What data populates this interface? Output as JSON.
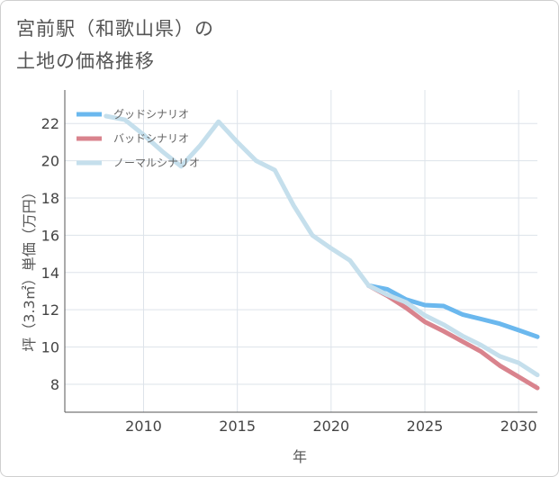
{
  "chart_data": {
    "type": "line",
    "title_lines": [
      "宮前駅（和歌山県）の",
      "土地の価格推移"
    ],
    "xlabel": "年",
    "ylabel": "坪（3.3㎡）単価（万円）",
    "xlim": [
      2005.8,
      2031
    ],
    "ylim": [
      6.5,
      23.8
    ],
    "x_ticks": [
      2010,
      2015,
      2020,
      2025,
      2030
    ],
    "y_ticks": [
      8,
      10,
      12,
      14,
      16,
      18,
      20,
      22
    ],
    "grid": true,
    "legend_position": "top-left",
    "series": [
      {
        "name": "グッドシナリオ",
        "color": "#6bb8ee",
        "x": [
          2022,
          2023,
          2024,
          2025,
          2026,
          2027,
          2028,
          2029,
          2030,
          2031
        ],
        "values": [
          13.3,
          13.1,
          12.55,
          12.25,
          12.2,
          11.75,
          11.5,
          11.25,
          10.9,
          10.55
        ]
      },
      {
        "name": "バッドシナリオ",
        "color": "#d9838d",
        "x": [
          2022,
          2023,
          2024,
          2025,
          2026,
          2027,
          2028,
          2029,
          2030,
          2031
        ],
        "values": [
          13.3,
          12.75,
          12.1,
          11.35,
          10.85,
          10.3,
          9.75,
          9.0,
          8.4,
          7.8
        ]
      },
      {
        "name": "ノーマルシナリオ",
        "color": "#c5dfec",
        "x": [
          2008,
          2009,
          2010,
          2011,
          2012,
          2013,
          2014,
          2015,
          2016,
          2017,
          2018,
          2019,
          2020,
          2021,
          2022,
          2023,
          2024,
          2025,
          2026,
          2027,
          2028,
          2029,
          2030,
          2031
        ],
        "values": [
          22.4,
          22.2,
          21.4,
          20.5,
          19.7,
          20.8,
          22.1,
          21.0,
          20.0,
          19.5,
          17.6,
          16.0,
          15.3,
          14.65,
          13.3,
          12.8,
          12.4,
          11.7,
          11.2,
          10.6,
          10.1,
          9.5,
          9.15,
          8.5
        ]
      }
    ]
  }
}
